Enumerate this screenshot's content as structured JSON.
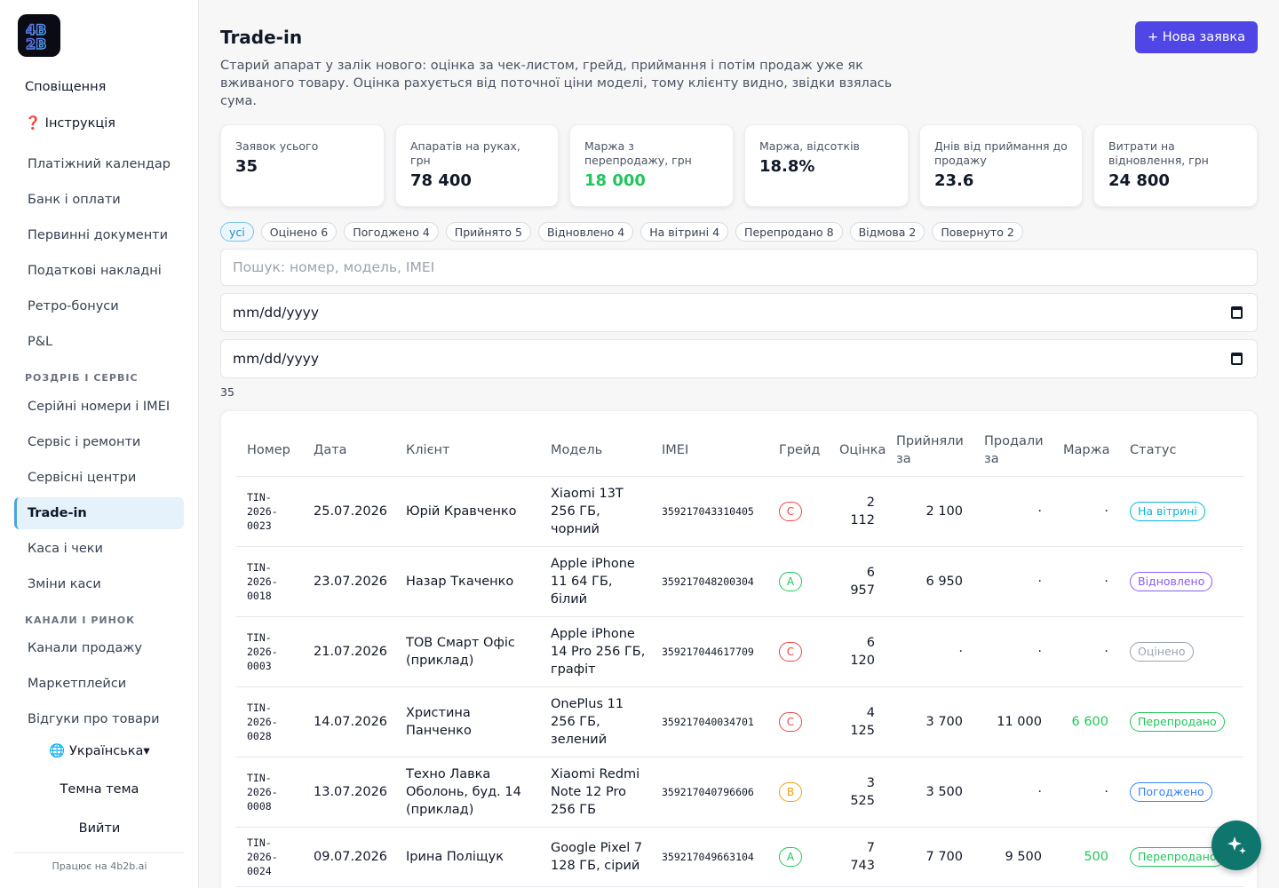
{
  "sidebar": {
    "logo_alt": "4B2B",
    "top_items": [
      {
        "label": "Сповіщення"
      },
      {
        "label": "❓ Інструкція"
      }
    ],
    "items": [
      {
        "label": "Платіжний календар"
      },
      {
        "label": "Банк і оплати"
      },
      {
        "label": "Первинні документи"
      },
      {
        "label": "Податкові накладні"
      },
      {
        "label": "Ретро-бонуси"
      },
      {
        "label": "P&L"
      }
    ],
    "section_retail": "РОЗДРІБ І СЕРВІС",
    "retail_items": [
      {
        "label": "Серійні номери і IMEI"
      },
      {
        "label": "Сервіс і ремонти"
      },
      {
        "label": "Сервісні центри"
      },
      {
        "label": "Trade-in",
        "active": true
      },
      {
        "label": "Каса і чеки"
      },
      {
        "label": "Зміни каси"
      }
    ],
    "section_channels": "КАНАЛИ І РИНОК",
    "channel_items": [
      {
        "label": "Канали продажу"
      },
      {
        "label": "Маркетплейси"
      },
      {
        "label": "Відгуки про товари"
      }
    ],
    "language": "🌐 Українська▾",
    "theme": "Темна тема",
    "logout": "Вийти",
    "footer": "Працює на 4b2b.ai"
  },
  "header": {
    "title": "Trade-in",
    "new_button": "+ Нова заявка",
    "description": "Старий апарат у залік нового: оцінка за чек-листом, грейд, приймання і потім продаж уже як вживаного товару. Оцінка рахується від поточної ціни моделі, тому клієнту видно, звідки взялась сума."
  },
  "kpis": [
    {
      "label": "Заявок усього",
      "value": "35"
    },
    {
      "label": "Апаратів на руках, грн",
      "value": "78 400"
    },
    {
      "label": "Маржа з перепродажу, грн",
      "value": "18 000",
      "color": "#22c55e"
    },
    {
      "label": "Маржа, відсотків",
      "value": "18.8%"
    },
    {
      "label": "Днів від приймання до продажу",
      "value": "23.6"
    },
    {
      "label": "Витрати на відновлення, грн",
      "value": "24 800"
    }
  ],
  "filters": [
    {
      "label": "усі",
      "active": true
    },
    {
      "label": "Оцінено 6"
    },
    {
      "label": "Погоджено 4"
    },
    {
      "label": "Прийнято 5"
    },
    {
      "label": "Відновлено 4"
    },
    {
      "label": "На вітрині 4"
    },
    {
      "label": "Перепродано 8"
    },
    {
      "label": "Відмова 2"
    },
    {
      "label": "Повернуто 2"
    }
  ],
  "search": {
    "placeholder": "Пошук: номер, модель, IMEI"
  },
  "date_from": {
    "value": "mm/dd/yyyy"
  },
  "date_to": {
    "value": "mm/dd/yyyy"
  },
  "result_count": "35",
  "table": {
    "columns": [
      "Номер",
      "Дата",
      "Клієнт",
      "Модель",
      "IMEI",
      "Грейд",
      "Оцінка",
      "Прийняли за",
      "Продали за",
      "Маржа",
      "Статус"
    ],
    "rows": [
      {
        "number": "TIN-2026-0023",
        "date": "25.07.2026",
        "client": "Юрій Кравченко",
        "model": "Xiaomi 13T 256 ГБ, чорний",
        "imei": "359217043310405",
        "grade": "C",
        "estimate": "2 112",
        "accepted": "2 100",
        "sold": "·",
        "margin": "·",
        "status": "На вітрині"
      },
      {
        "number": "TIN-2026-0018",
        "date": "23.07.2026",
        "client": "Назар Ткаченко",
        "model": "Apple iPhone 11 64 ГБ, білий",
        "imei": "359217048200304",
        "grade": "A",
        "estimate": "6 957",
        "accepted": "6 950",
        "sold": "·",
        "margin": "·",
        "status": "Відновлено"
      },
      {
        "number": "TIN-2026-0003",
        "date": "21.07.2026",
        "client": "ТОВ Смарт Офіс (приклад)",
        "model": "Apple iPhone 14 Pro 256 ГБ, графіт",
        "imei": "359217044617709",
        "grade": "C",
        "estimate": "6 120",
        "accepted": "·",
        "sold": "·",
        "margin": "·",
        "status": "Оцінено"
      },
      {
        "number": "TIN-2026-0028",
        "date": "14.07.2026",
        "client": "Христина Панченко",
        "model": "OnePlus 11 256 ГБ, зелений",
        "imei": "359217040034701",
        "grade": "C",
        "estimate": "4 125",
        "accepted": "3 700",
        "sold": "11 000",
        "margin": "6 600",
        "status": "Перепродано"
      },
      {
        "number": "TIN-2026-0008",
        "date": "13.07.2026",
        "client": "Техно Лавка Оболонь, буд. 14 (приклад)",
        "model": "Xiaomi Redmi Note 12 Pro 256 ГБ",
        "imei": "359217040796606",
        "grade": "B",
        "estimate": "3 525",
        "accepted": "3 500",
        "sold": "·",
        "margin": "·",
        "status": "Погоджено"
      },
      {
        "number": "TIN-2026-0024",
        "date": "09.07.2026",
        "client": "Ірина Поліщук",
        "model": "Google Pixel 7 128 ГБ, сірий",
        "imei": "359217049663104",
        "grade": "A",
        "estimate": "7 743",
        "accepted": "7 700",
        "sold": "9 500",
        "margin": "500",
        "status": "Перепродано"
      }
    ]
  },
  "colors": {
    "accent": "#4f46e5",
    "positive": "#22c55e",
    "grade_A": "#22c55e",
    "grade_B": "#f59e0b",
    "grade_C": "#ef4444",
    "status_showcase": "#06b6d4",
    "status_restored": "#8b5cf6",
    "status_evaluated": "#9ca3af",
    "status_resold": "#22c55e",
    "status_agreed": "#3b82f6"
  },
  "icons": {
    "fab": "sparkles-icon",
    "calendar": "calendar-icon",
    "logo": "logo-icon"
  }
}
